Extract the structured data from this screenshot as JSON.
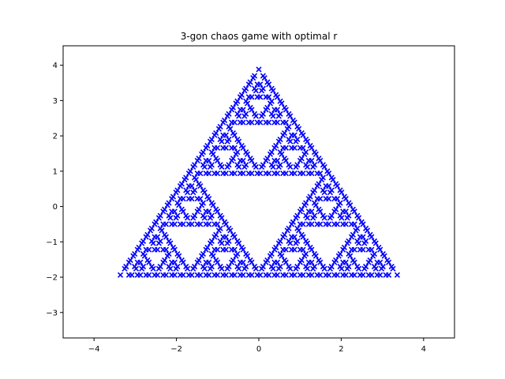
{
  "chart_data": {
    "type": "scatter",
    "title": "3-gon chaos game with optimal r",
    "xlabel": "",
    "ylabel": "",
    "xlim": [
      -4.75,
      4.75
    ],
    "ylim": [
      -3.72,
      4.55
    ],
    "xticks": [
      -4,
      -2,
      0,
      2,
      4
    ],
    "yticks": [
      -3,
      -2,
      -1,
      0,
      1,
      2,
      3,
      4
    ],
    "xtick_labels": [
      "−4",
      "−2",
      "0",
      "2",
      "4"
    ],
    "ytick_labels": [
      "−3",
      "−2",
      "−1",
      "0",
      "1",
      "2",
      "3",
      "4"
    ],
    "grid": false,
    "marker": "x",
    "point_color": "#0000ff",
    "polygon_sides": 3,
    "vertices": [
      [
        0.0,
        4.0
      ],
      [
        -3.464,
        -2.0
      ],
      [
        3.464,
        -2.0
      ]
    ],
    "ratio_r": 0.5,
    "iterations": 5
  }
}
